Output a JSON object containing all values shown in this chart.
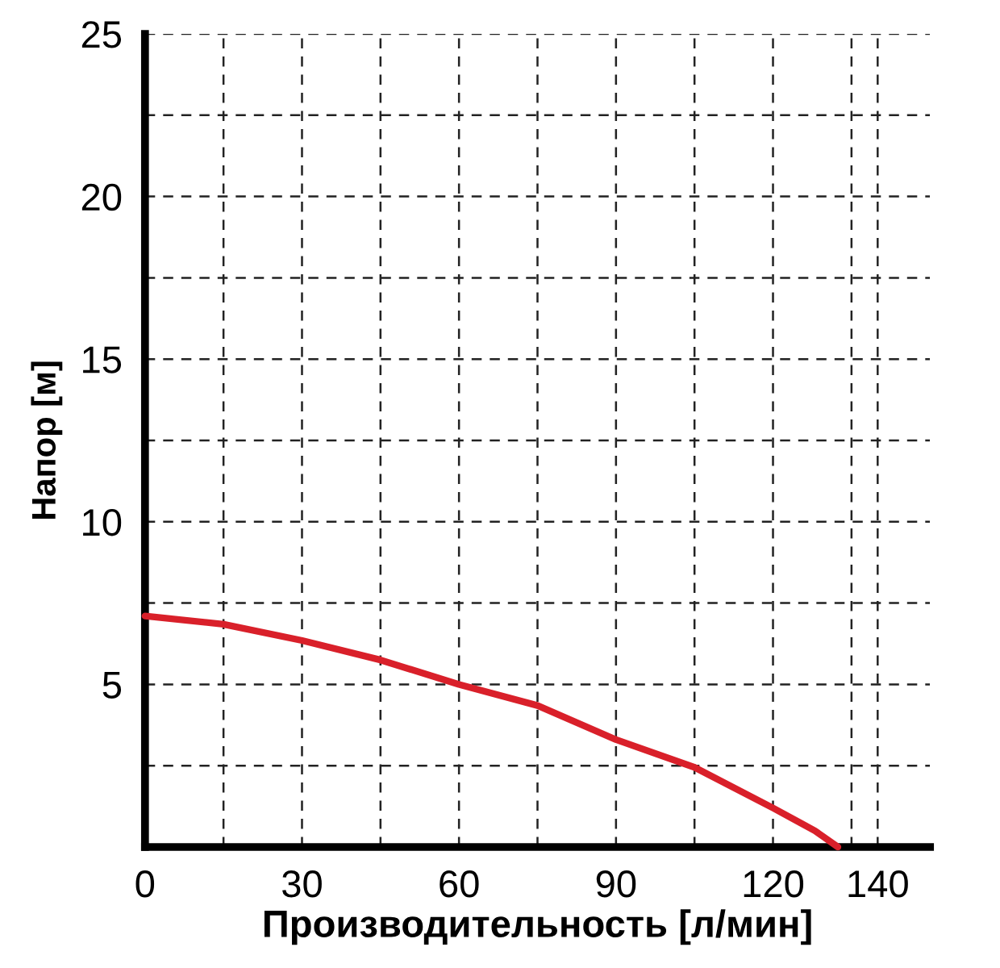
{
  "chart_data": {
    "type": "line",
    "xlabel": "Производительность [л/мин]",
    "ylabel": "Напор [м]",
    "xlim": [
      0,
      150
    ],
    "ylim": [
      0,
      25
    ],
    "xticks": [
      0,
      {
        "value": 15,
        "label": null
      },
      30,
      {
        "value": 45,
        "label": null
      },
      60,
      {
        "value": 75,
        "label": null
      },
      90,
      {
        "value": 105,
        "label": null
      },
      120,
      {
        "value": 135,
        "label": null
      },
      140
    ],
    "yticks": [
      {
        "value": 2.5,
        "label": null
      },
      5,
      {
        "value": 7.5,
        "label": null
      },
      10,
      {
        "value": 12.5,
        "label": null
      },
      15,
      {
        "value": 17.5,
        "label": null
      },
      20,
      {
        "value": 22.5,
        "label": null
      },
      25
    ],
    "grid": true,
    "marker": "none",
    "line_style": "solid",
    "series": [
      {
        "color": "#d9202a",
        "x": [
          0,
          15,
          30,
          45,
          60,
          75,
          90,
          105,
          120,
          128,
          132.4
        ],
        "values": [
          7.1,
          6.85,
          6.35,
          5.75,
          5.0,
          4.35,
          3.3,
          2.45,
          1.2,
          0.5,
          0
        ]
      }
    ]
  }
}
